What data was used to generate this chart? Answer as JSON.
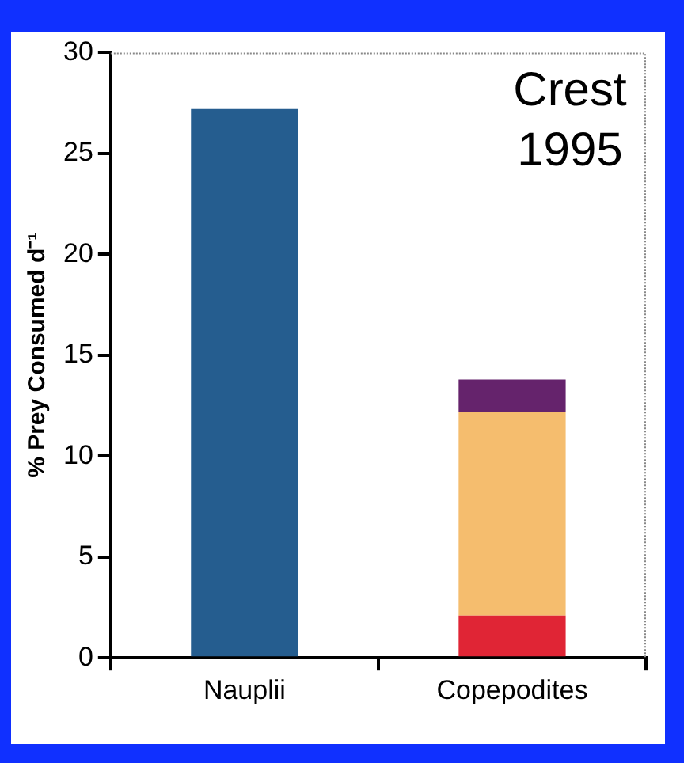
{
  "chart_data": {
    "type": "bar",
    "stacked": true,
    "ylabel": "% Prey Consumed d⁻¹",
    "categories": [
      "Nauplii",
      "Copepodites"
    ],
    "series": [
      {
        "color": "#255d8f",
        "values": [
          27.2,
          null
        ]
      },
      {
        "color": "#e02535",
        "values": [
          null,
          2.1
        ]
      },
      {
        "color": "#f5bd6e",
        "values": [
          null,
          10.1
        ]
      },
      {
        "color": "#65236c",
        "values": [
          null,
          1.6
        ]
      }
    ],
    "ylim": [
      0,
      30
    ],
    "yticks": [
      0,
      5,
      10,
      15,
      20,
      25,
      30
    ],
    "grid": false,
    "legend": false,
    "annotations": [
      "Crest\n1995"
    ]
  }
}
